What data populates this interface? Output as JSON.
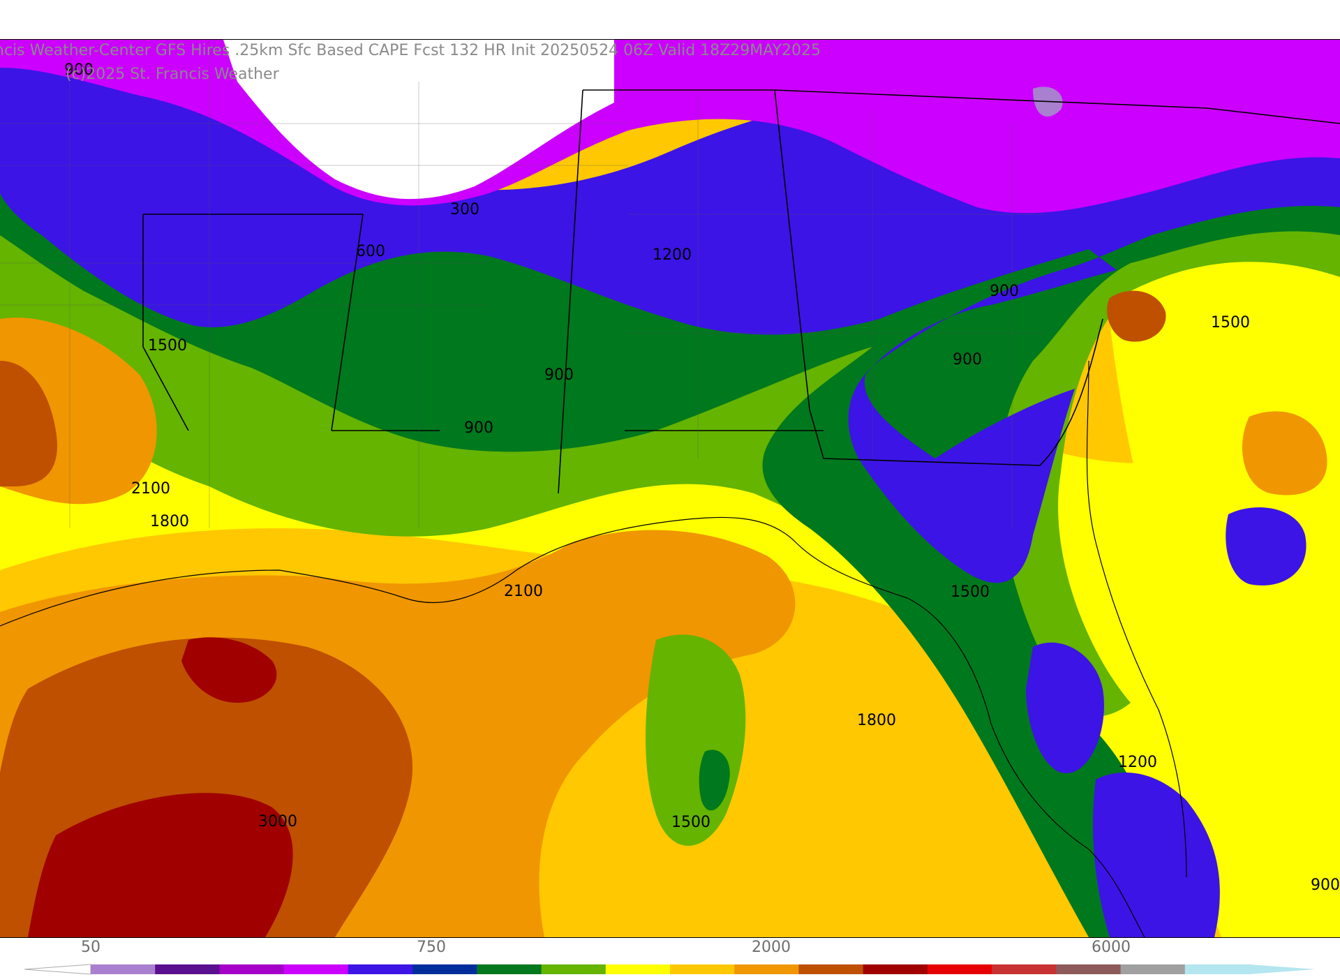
{
  "header": {
    "title": "ncis Weather-Center GFS Hires .25km Sfc Based CAPE  Fcst 132 HR Init 20250524 06Z  Valid 18Z29MAY2025",
    "copyright": "(c)2025 St. Francis Weather"
  },
  "map": {
    "contour_labels": [
      {
        "text": "900"
      },
      {
        "text": "300"
      },
      {
        "text": "600"
      },
      {
        "text": "1200"
      },
      {
        "text": "900"
      },
      {
        "text": "1500"
      },
      {
        "text": "900"
      },
      {
        "text": "900"
      },
      {
        "text": "900"
      },
      {
        "text": "2100"
      },
      {
        "text": "1800"
      },
      {
        "text": "2100"
      },
      {
        "text": "1500"
      },
      {
        "text": "1800"
      },
      {
        "text": "1200"
      },
      {
        "text": "3000"
      },
      {
        "text": "1500"
      },
      {
        "text": "1500"
      },
      {
        "text": "900"
      }
    ]
  },
  "colorbar": {
    "tick_labels": [
      "50",
      "750",
      "2000",
      "6000"
    ],
    "colors": [
      "#a97fd0",
      "#5a0f8f",
      "#a400c8",
      "#cc00ff",
      "#3c14e6",
      "#002d9c",
      "#00781e",
      "#64b400",
      "#ffff00",
      "#ffc800",
      "#f09600",
      "#be5000",
      "#a00000",
      "#e60000",
      "#c83232",
      "#8c5a5a",
      "#a0a0a0",
      "#b4e6f0"
    ]
  }
}
